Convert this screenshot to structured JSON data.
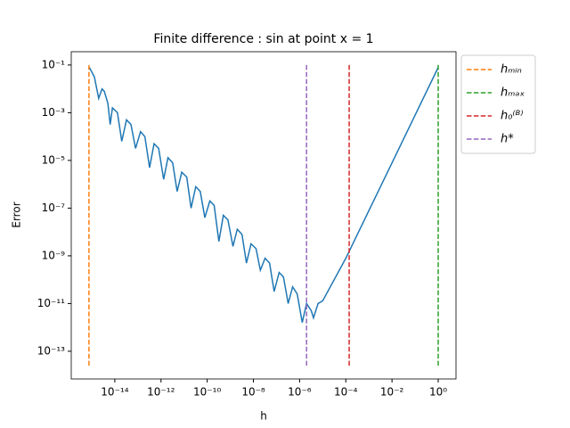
{
  "chart_data": {
    "type": "line",
    "title": "Finite difference : sin at point x = 1",
    "xlabel": "h",
    "ylabel": "Error",
    "xscale": "log",
    "yscale": "log",
    "xlim": [
      1.3e-16,
      5.9
    ],
    "ylim": [
      6.9e-15,
      0.36
    ],
    "xticks": [
      {
        "value": 1e-14,
        "label": "10⁻¹⁴"
      },
      {
        "value": 1e-12,
        "label": "10⁻¹²"
      },
      {
        "value": 1e-10,
        "label": "10⁻¹⁰"
      },
      {
        "value": 1e-08,
        "label": "10⁻⁸"
      },
      {
        "value": 1e-06,
        "label": "10⁻⁶"
      },
      {
        "value": 0.0001,
        "label": "10⁻⁴"
      },
      {
        "value": 0.01,
        "label": "10⁻²"
      },
      {
        "value": 1,
        "label": "10⁰"
      }
    ],
    "yticks": [
      {
        "value": 0.1,
        "label": "10⁻¹"
      },
      {
        "value": 0.001,
        "label": "10⁻³"
      },
      {
        "value": 1e-05,
        "label": "10⁻⁵"
      },
      {
        "value": 1e-07,
        "label": "10⁻⁷"
      },
      {
        "value": 1e-09,
        "label": "10⁻⁹"
      },
      {
        "value": 1e-11,
        "label": "10⁻¹¹"
      },
      {
        "value": 1e-13,
        "label": "10⁻¹³"
      }
    ],
    "legend": "upper right outside",
    "series": [
      {
        "color": "#1f77b4",
        "linestyle": "solid",
        "x": [
          7.9e-16,
          1.3e-15,
          2e-15,
          2.8e-15,
          3.5e-15,
          5e-15,
          6.3e-15,
          7.9e-15,
          1.3e-14,
          2e-14,
          3.2e-14,
          5e-14,
          7.9e-14,
          1.3e-13,
          2e-13,
          3.2e-13,
          5e-13,
          7.9e-13,
          1.3e-12,
          2e-12,
          3.2e-12,
          5e-12,
          7.9e-12,
          1.3e-11,
          2e-11,
          3.2e-11,
          5e-11,
          7.9e-11,
          1.3e-10,
          2e-10,
          3.2e-10,
          5e-10,
          7.9e-10,
          1.3e-09,
          2e-09,
          3.2e-09,
          5e-09,
          7.9e-09,
          1.3e-08,
          2e-08,
          3.2e-08,
          5e-08,
          7.9e-08,
          1.3e-07,
          2e-07,
          3.2e-07,
          5e-07,
          7.9e-07,
          1.3e-06,
          2e-06,
          3.2e-06,
          4e-06,
          6.3e-06,
          1e-05,
          0.0001,
          0.01,
          1
        ],
        "values": [
          0.079,
          0.032,
          0.004,
          0.01,
          0.0079,
          0.0025,
          0.00032,
          0.0016,
          0.001,
          6.3e-05,
          0.0005,
          0.00032,
          3.2e-05,
          0.00016,
          0.0001,
          5e-06,
          5e-05,
          3.2e-05,
          1.6e-06,
          1.3e-05,
          7.9e-06,
          5e-07,
          3.2e-06,
          2e-06,
          1e-07,
          7.9e-07,
          5e-07,
          4e-08,
          2e-07,
          1.3e-07,
          4e-09,
          5e-08,
          3.2e-08,
          2.5e-09,
          1.3e-08,
          7.9e-09,
          5e-10,
          3.2e-09,
          2e-09,
          2.5e-10,
          7.9e-10,
          5e-10,
          3.2e-11,
          2e-10,
          1.3e-10,
          1e-11,
          5e-11,
          2.5e-11,
          1.6e-12,
          1e-11,
          5e-12,
          2.5e-12,
          1e-11,
          1.3e-11,
          7.9e-10,
          7.9e-06,
          0.079
        ]
      },
      {
        "name": "hₘᵢₙ",
        "color": "#ff7f0e",
        "linestyle": "dashed",
        "x": [
          7.6e-16,
          7.6e-16
        ],
        "values": [
          0.1,
          2.5e-14
        ]
      },
      {
        "name": "hₘₐₓ",
        "color": "#2ca02c",
        "linestyle": "dashed",
        "x": [
          1,
          1
        ],
        "values": [
          0.1,
          2.5e-14
        ]
      },
      {
        "name": "h₀⁽ᴮ⁾",
        "color": "#d62728",
        "linestyle": "dashed",
        "x": [
          0.00014,
          0.00014
        ],
        "values": [
          0.1,
          2.5e-14
        ]
      },
      {
        "name": "h*",
        "color": "#9467bd",
        "linestyle": "dashed",
        "x": [
          2e-06,
          2e-06
        ],
        "values": [
          0.1,
          2.5e-14
        ]
      }
    ]
  }
}
